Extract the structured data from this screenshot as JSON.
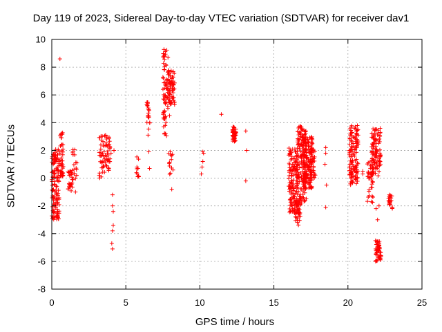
{
  "chart_data": {
    "type": "scatter",
    "title": "Day 119 of 2023, Sidereal Day-to-day VTEC variation (SDTVAR) for receiver dav1",
    "xlabel": "GPS time / hours",
    "ylabel": "SDTVAR / TECUs",
    "xlim": [
      0,
      25
    ],
    "ylim": [
      -8,
      10
    ],
    "xticks": [
      0,
      5,
      10,
      15,
      20,
      25
    ],
    "yticks": [
      -8,
      -6,
      -4,
      -2,
      0,
      2,
      4,
      6,
      8,
      10
    ],
    "grid": true,
    "marker": "+",
    "color": "#ff0000",
    "clusters": [
      {
        "x": [
          0.0,
          0.5
        ],
        "y": [
          -3.0,
          2.1
        ],
        "n": 130
      },
      {
        "x": [
          0.55,
          0.8
        ],
        "y": [
          0.0,
          3.3
        ],
        "n": 40
      },
      {
        "x": [
          1.1,
          1.4
        ],
        "y": [
          -1.0,
          0.6
        ],
        "n": 25
      },
      {
        "x": [
          1.4,
          1.7
        ],
        "y": [
          -0.2,
          2.3
        ],
        "n": 16
      },
      {
        "x": [
          3.2,
          3.7
        ],
        "y": [
          0.0,
          3.1
        ],
        "n": 45
      },
      {
        "x": [
          3.7,
          3.95
        ],
        "y": [
          0.5,
          3.0
        ],
        "n": 25
      },
      {
        "x": [
          5.7,
          5.9
        ],
        "y": [
          0.1,
          1.7
        ],
        "n": 8
      },
      {
        "x": [
          6.4,
          6.65
        ],
        "y": [
          3.5,
          5.5
        ],
        "n": 20
      },
      {
        "x": [
          7.5,
          7.85
        ],
        "y": [
          3.0,
          9.4
        ],
        "n": 70
      },
      {
        "x": [
          7.85,
          8.3
        ],
        "y": [
          5.3,
          7.8
        ],
        "n": 70
      },
      {
        "x": [
          7.9,
          8.2
        ],
        "y": [
          -0.2,
          2.0
        ],
        "n": 12
      },
      {
        "x": [
          12.2,
          12.45
        ],
        "y": [
          2.6,
          3.7
        ],
        "n": 40
      },
      {
        "x": [
          16.0,
          16.6
        ],
        "y": [
          -2.5,
          2.2
        ],
        "n": 150
      },
      {
        "x": [
          16.4,
          16.8
        ],
        "y": [
          -3.4,
          -1.5
        ],
        "n": 40
      },
      {
        "x": [
          16.6,
          17.2
        ],
        "y": [
          -1.8,
          3.8
        ],
        "n": 150
      },
      {
        "x": [
          17.0,
          17.6
        ],
        "y": [
          -0.8,
          3.0
        ],
        "n": 150
      },
      {
        "x": [
          17.5,
          17.8
        ],
        "y": [
          0.0,
          2.2
        ],
        "n": 30
      },
      {
        "x": [
          20.1,
          20.7
        ],
        "y": [
          -0.5,
          3.8
        ],
        "n": 130
      },
      {
        "x": [
          21.3,
          21.7
        ],
        "y": [
          -1.8,
          1.4
        ],
        "n": 40
      },
      {
        "x": [
          21.6,
          22.2
        ],
        "y": [
          0.0,
          3.6
        ],
        "n": 110
      },
      {
        "x": [
          21.85,
          22.25
        ],
        "y": [
          -6.0,
          -4.5
        ],
        "n": 55
      },
      {
        "x": [
          22.7,
          23.0
        ],
        "y": [
          -2.2,
          -1.2
        ],
        "n": 20
      }
    ],
    "points": [
      [
        0.55,
        8.6
      ],
      [
        1.15,
        0.4
      ],
      [
        1.6,
        -1.0
      ],
      [
        1.7,
        1.1
      ],
      [
        4.1,
        -1.2
      ],
      [
        4.1,
        -2.0
      ],
      [
        4.15,
        -2.4
      ],
      [
        4.15,
        -3.4
      ],
      [
        4.1,
        -3.8
      ],
      [
        4.05,
        -4.7
      ],
      [
        4.1,
        -5.1
      ],
      [
        4.0,
        1.8
      ],
      [
        4.2,
        2.0
      ],
      [
        5.8,
        0.1
      ],
      [
        5.75,
        0.8
      ],
      [
        6.6,
        0.7
      ],
      [
        6.55,
        1.9
      ],
      [
        6.5,
        3.1
      ],
      [
        6.5,
        4.5
      ],
      [
        8.1,
        -0.8
      ],
      [
        7.95,
        1.1
      ],
      [
        8.0,
        1.9
      ],
      [
        7.95,
        4.5
      ],
      [
        10.1,
        0.3
      ],
      [
        10.15,
        0.8
      ],
      [
        10.2,
        1.2
      ],
      [
        10.25,
        1.8
      ],
      [
        10.2,
        1.9
      ],
      [
        11.45,
        4.6
      ],
      [
        12.35,
        3.1
      ],
      [
        13.1,
        -0.2
      ],
      [
        13.15,
        2.0
      ],
      [
        13.1,
        3.4
      ],
      [
        18.45,
        1.0
      ],
      [
        18.5,
        1.8
      ],
      [
        18.5,
        2.2
      ],
      [
        18.55,
        -0.5
      ],
      [
        18.5,
        -2.1
      ],
      [
        20.1,
        0.8
      ],
      [
        20.1,
        2.0
      ],
      [
        21.0,
        0.3
      ],
      [
        21.0,
        0.5
      ],
      [
        21.9,
        -2.2
      ],
      [
        22.0,
        -3.0
      ],
      [
        22.1,
        -2.0
      ],
      [
        21.9,
        1.5
      ],
      [
        22.8,
        -1.2
      ],
      [
        23.0,
        -2.1
      ]
    ]
  }
}
